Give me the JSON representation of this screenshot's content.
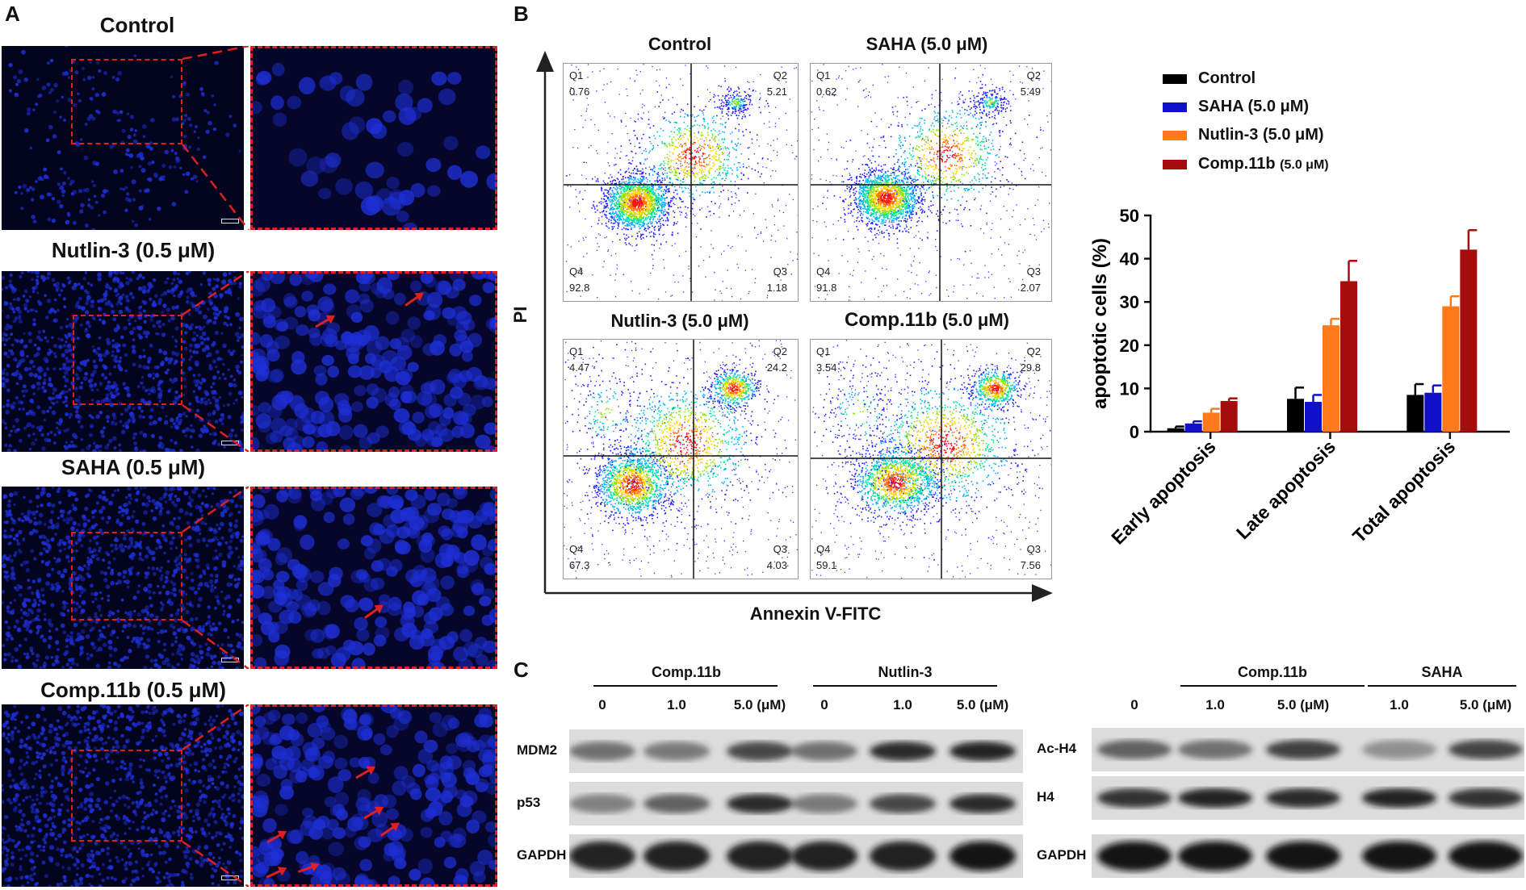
{
  "panels": {
    "a": {
      "letter": "A"
    },
    "b": {
      "letter": "B"
    },
    "c": {
      "letter": "C"
    }
  },
  "microscopy": {
    "rows": [
      {
        "label": "Control"
      },
      {
        "label": "Nutlin-3 (0.5 μM)"
      },
      {
        "label": "SAHA (0.5 μM)"
      },
      {
        "label": "Comp.11b (0.5 μM)"
      }
    ],
    "colors": {
      "nucleus": "#1e2fd6",
      "roi": "#e02020",
      "background": "#03041e"
    }
  },
  "flow": {
    "axis_y": "PI",
    "axis_x": "Annexin V-FITC",
    "plots": [
      {
        "title": "Control",
        "q1_label": "Q1",
        "q1": "0.76",
        "q2_label": "Q2",
        "q2": "5.21",
        "q3_label": "Q3",
        "q3": "1.18",
        "q4_label": "Q4",
        "q4": "92.8"
      },
      {
        "title": "SAHA (5.0 μM)",
        "q1_label": "Q1",
        "q1": "0.62",
        "q2_label": "Q2",
        "q2": "5.49",
        "q3_label": "Q3",
        "q3": "2.07",
        "q4_label": "Q4",
        "q4": "91.8"
      },
      {
        "title": "Nutlin-3 (5.0 μM)",
        "q1_label": "Q1",
        "q1": "4.47",
        "q2_label": "Q2",
        "q2": "24.2",
        "q3_label": "Q3",
        "q3": "4.03",
        "q4_label": "Q4",
        "q4": "67.3"
      },
      {
        "title_main": "Comp.11b",
        "title_sub": "(5.0 μM)",
        "q1_label": "Q1",
        "q1": "3.54",
        "q2_label": "Q2",
        "q2": "29.8",
        "q3_label": "Q3",
        "q3": "7.56",
        "q4_label": "Q4",
        "q4": "59.1"
      }
    ]
  },
  "legend": [
    {
      "label": "Control",
      "color": "#000000"
    },
    {
      "label": "SAHA (5.0 μM)",
      "color": "#1010c8"
    },
    {
      "label": "Nutlin-3 (5.0 μM)",
      "color": "#ff7a1a"
    },
    {
      "label_main": "Comp.11b",
      "label_sub": "(5.0 μM)",
      "color": "#a50d0d"
    }
  ],
  "chart_data": {
    "type": "bar",
    "title": "",
    "xlabel": "",
    "ylabel": "apoptotic cells (%)",
    "ylim": [
      0,
      50
    ],
    "yticks": [
      "0",
      "10",
      "20",
      "30",
      "40",
      "50"
    ],
    "ytick_values": [
      0,
      10,
      20,
      30,
      40,
      50
    ],
    "categories": [
      "Early apoptosis",
      "Late apoptosis",
      "Total apoptosis"
    ],
    "grid": false,
    "legend_position": "top",
    "series": [
      {
        "name": "Control",
        "color": "#000000",
        "values": [
          0.8,
          7.6,
          8.5
        ],
        "errors": [
          0.4,
          2.6,
          2.5
        ]
      },
      {
        "name": "SAHA (5.0 μM)",
        "color": "#1010c8",
        "values": [
          1.9,
          6.9,
          9.0
        ],
        "errors": [
          0.5,
          1.6,
          1.7
        ]
      },
      {
        "name": "Nutlin-3 (5.0 μM)",
        "color": "#ff7a1a",
        "values": [
          4.4,
          24.6,
          29.0
        ],
        "errors": [
          0.9,
          1.5,
          2.3
        ]
      },
      {
        "name": "Comp.11b (5.0 μM)",
        "color": "#a50d0d",
        "values": [
          7.1,
          34.8,
          42.1
        ],
        "errors": [
          0.6,
          4.7,
          4.5
        ]
      }
    ]
  },
  "western": {
    "left": {
      "groups": [
        {
          "label": "Comp.11b"
        },
        {
          "label": "Nutlin-3"
        }
      ],
      "doses": [
        "0",
        "1.0",
        "5.0 (μM)",
        "0",
        "1.0",
        "5.0 (μM)"
      ],
      "proteins": [
        "MDM2",
        "p53",
        "GAPDH"
      ],
      "intensity": [
        [
          0.45,
          0.4,
          0.7,
          0.45,
          0.85,
          0.9
        ],
        [
          0.35,
          0.55,
          0.85,
          0.4,
          0.7,
          0.85
        ],
        [
          0.9,
          0.92,
          0.92,
          0.92,
          0.92,
          0.95
        ]
      ]
    },
    "right": {
      "groups": [
        {
          "label": "Comp.11b"
        },
        {
          "label": "SAHA"
        }
      ],
      "doses": [
        "0",
        "1.0",
        "5.0 (μM)",
        "1.0",
        "5.0 (μM)"
      ],
      "proteins": [
        "Ac-H4",
        "H4",
        "GAPDH"
      ],
      "intensity": [
        [
          0.55,
          0.45,
          0.75,
          0.25,
          0.72
        ],
        [
          0.8,
          0.9,
          0.85,
          0.9,
          0.8
        ],
        [
          0.95,
          0.95,
          0.95,
          0.95,
          0.95
        ]
      ]
    }
  }
}
